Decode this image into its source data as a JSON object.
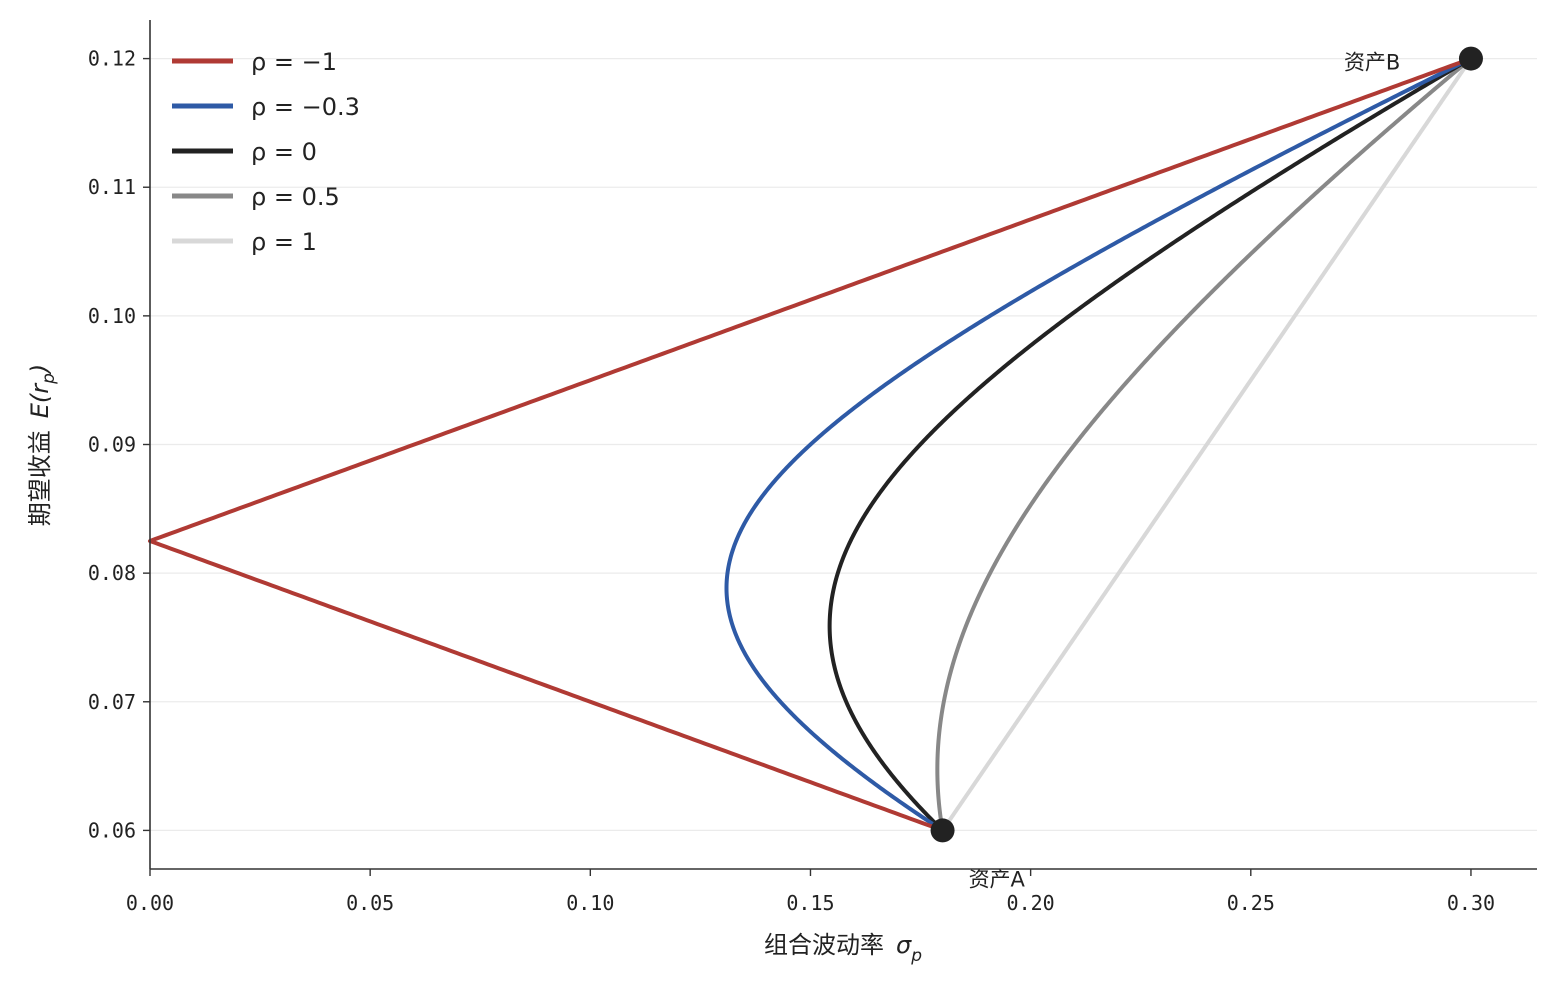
{
  "chart_data": {
    "type": "line",
    "title": "",
    "xlabel": "组合波动率",
    "xlabel_symbol": "σ",
    "xlabel_sub": "p",
    "ylabel": "期望收益",
    "ylabel_symbol_pre": "E(r",
    "ylabel_sub": "p",
    "ylabel_symbol_post": ")",
    "xlim": [
      0,
      0.315
    ],
    "ylim": [
      0.057,
      0.123
    ],
    "x_ticks": [
      0.0,
      0.05,
      0.1,
      0.15,
      0.2,
      0.25,
      0.3
    ],
    "x_tick_labels": [
      "0.00",
      "0.05",
      "0.10",
      "0.15",
      "0.20",
      "0.25",
      "0.30"
    ],
    "y_ticks": [
      0.06,
      0.07,
      0.08,
      0.09,
      0.1,
      0.11,
      0.12
    ],
    "y_tick_labels": [
      "0.06",
      "0.07",
      "0.08",
      "0.09",
      "0.10",
      "0.11",
      "0.12"
    ],
    "grid": "horizontal",
    "legend_position": "top-left",
    "assets": {
      "A": {
        "label": "资产A",
        "sigma": 0.18,
        "ret": 0.06
      },
      "B": {
        "label": "资产B",
        "sigma": 0.3,
        "ret": 0.12
      }
    },
    "series": [
      {
        "name": "ρ = −1",
        "rho": -1.0,
        "color": "#b03a34"
      },
      {
        "name": "ρ = −0.3",
        "rho": -0.3,
        "color": "#2e5aa6"
      },
      {
        "name": "ρ = 0",
        "rho": 0.0,
        "color": "#222222"
      },
      {
        "name": "ρ = 0.5",
        "rho": 0.5,
        "color": "#888888"
      },
      {
        "name": "ρ = 1",
        "rho": 1.0,
        "color": "#d8d8d8"
      }
    ]
  }
}
